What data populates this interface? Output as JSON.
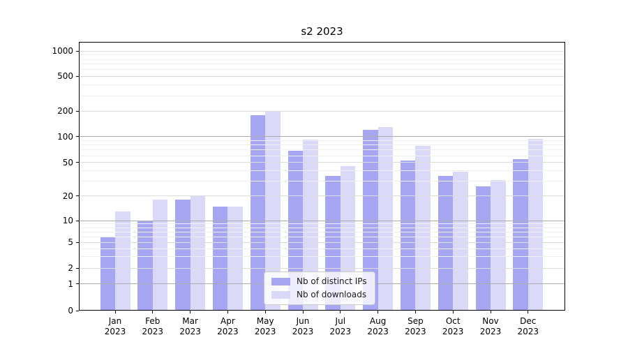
{
  "title": "s2 2023",
  "chart_data": {
    "type": "bar",
    "title": "s2 2023",
    "categories": [
      "Jan 2023",
      "Feb 2023",
      "Mar 2023",
      "Apr 2023",
      "May 2023",
      "Jun 2023",
      "Jul 2023",
      "Aug 2023",
      "Sep 2023",
      "Oct 2023",
      "Nov 2023",
      "Dec 2023"
    ],
    "series": [
      {
        "name": "Nb of distinct IPs",
        "color": "#a6a6f2",
        "values": [
          6,
          10,
          18,
          15,
          180,
          68,
          35,
          120,
          53,
          35,
          26,
          55
        ]
      },
      {
        "name": "Nb of downloads",
        "color": "#dadaf8",
        "values": [
          13,
          18,
          20,
          15,
          198,
          92,
          45,
          130,
          78,
          39,
          31,
          95
        ]
      }
    ],
    "xlabel": "",
    "ylabel": "",
    "yscale": "symlog",
    "yticks": [
      0,
      1,
      2,
      5,
      10,
      20,
      50,
      100,
      200,
      500,
      1000
    ],
    "ylim": [
      0,
      1100
    ],
    "grid": true,
    "legend_position": "lower center"
  },
  "colors": {
    "background": "#ffffff",
    "bar_distinct_ips": "#a6a6f2",
    "bar_downloads": "#dadaf8",
    "grid_major": "#ababab",
    "grid_light": "#dcdcdc",
    "grid_minor": "#efefef",
    "axis": "#000000"
  }
}
